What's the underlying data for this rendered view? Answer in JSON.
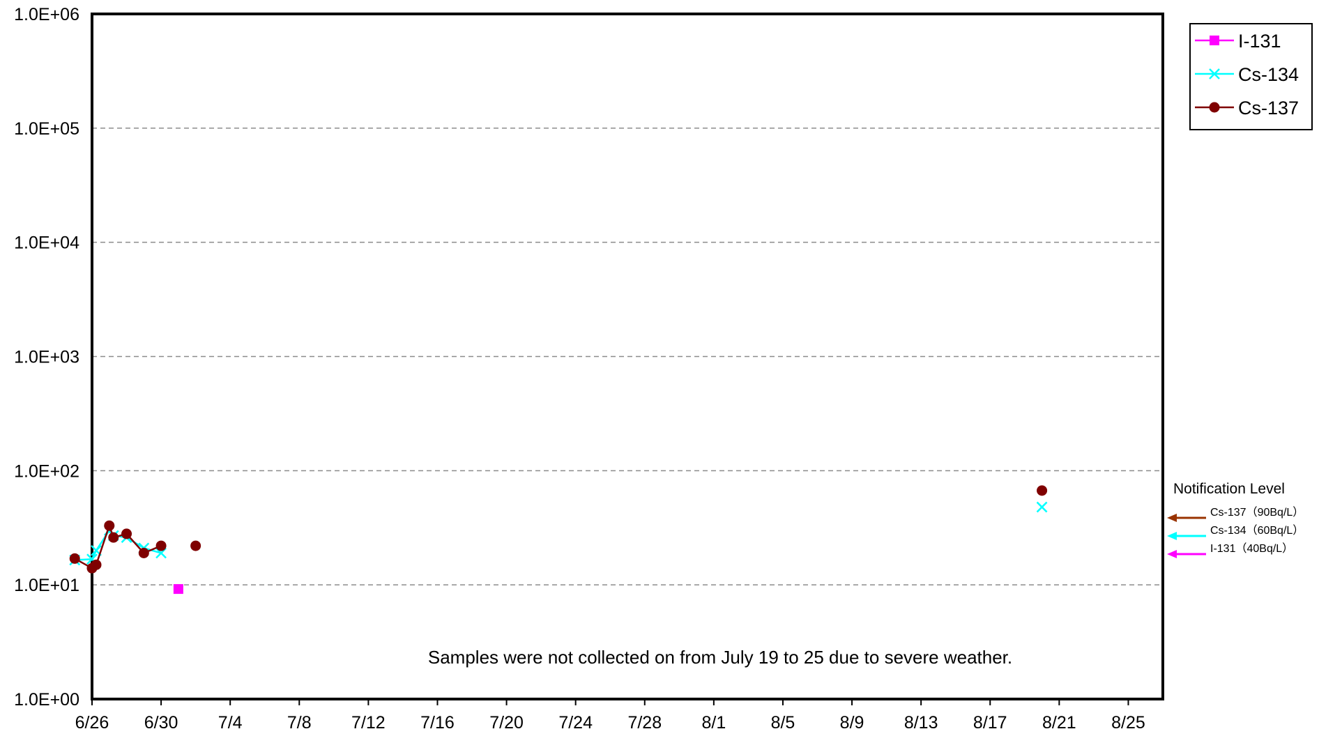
{
  "chart_data": {
    "type": "scatter",
    "title": "",
    "xlabel": "",
    "ylabel": "",
    "y_scale": "log",
    "ylim": [
      1,
      1000000
    ],
    "xlim": [
      "6/26",
      "8/27"
    ],
    "y_tick_labels": [
      "1.0E+00",
      "1.0E+01",
      "1.0E+02",
      "1.0E+03",
      "1.0E+04",
      "1.0E+05",
      "1.0E+06"
    ],
    "x_tick_labels": [
      "6/26",
      "6/30",
      "7/4",
      "7/8",
      "7/12",
      "7/16",
      "7/20",
      "7/24",
      "7/28",
      "8/1",
      "8/5",
      "8/9",
      "8/13",
      "8/17",
      "8/21",
      "8/25"
    ],
    "grid": "horizontal dashed",
    "legend_position": "top-right",
    "series": [
      {
        "name": "I-131",
        "color": "#FF00FF",
        "marker": "square",
        "points": [
          {
            "x": "7/1",
            "y": 9.2
          }
        ]
      },
      {
        "name": "Cs-134",
        "color": "#00FFFF",
        "marker": "x",
        "points": [
          {
            "x": "6/25",
            "y": 16.5
          },
          {
            "x": "6/26",
            "y": 16.8
          },
          {
            "x": "6/26",
            "y": 20
          },
          {
            "x": "6/27",
            "y": 30
          },
          {
            "x": "6/27",
            "y": 27
          },
          {
            "x": "6/28",
            "y": 26
          },
          {
            "x": "6/29",
            "y": 21
          },
          {
            "x": "6/30",
            "y": 19
          },
          {
            "x": "8/20",
            "y": 48
          }
        ]
      },
      {
        "name": "Cs-137",
        "color": "#7F0000",
        "marker": "circle",
        "points": [
          {
            "x": "6/25",
            "y": 17
          },
          {
            "x": "6/26",
            "y": 14
          },
          {
            "x": "6/26",
            "y": 15
          },
          {
            "x": "6/27",
            "y": 33
          },
          {
            "x": "6/27",
            "y": 26
          },
          {
            "x": "6/28",
            "y": 28
          },
          {
            "x": "6/29",
            "y": 19
          },
          {
            "x": "6/30",
            "y": 22
          },
          {
            "x": "7/2",
            "y": 22
          },
          {
            "x": "8/20",
            "y": 67
          }
        ]
      }
    ],
    "notification": {
      "title": "Notification Level",
      "items": [
        {
          "label": "Cs-137（90Bq/L）",
          "color": "#993300"
        },
        {
          "label": "Cs-134（60Bq/L）",
          "color": "#00FFFF"
        },
        {
          "label": "I-131（40Bq/L）",
          "color": "#FF00FF"
        }
      ]
    },
    "annotation": "Samples were not collected on  from July 19 to 25 due to severe weather."
  }
}
